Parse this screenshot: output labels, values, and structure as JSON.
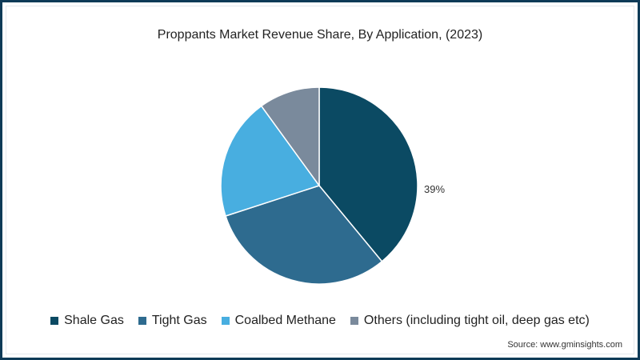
{
  "chart_data": {
    "type": "pie",
    "title": "Proppants Market Revenue Share, By Application, (2023)",
    "categories": [
      "Shale Gas",
      "Tight Gas",
      "Coalbed Methane",
      "Others (including tight oil, deep gas etc)"
    ],
    "values": [
      39,
      31,
      20,
      10
    ],
    "colors": [
      "#0b4a63",
      "#2e6b8f",
      "#48aee0",
      "#7a8a9c"
    ],
    "data_labels": [
      {
        "category": "Shale Gas",
        "text": "39%"
      }
    ],
    "legend_position": "bottom",
    "start_angle": "12 o'clock, clockwise"
  },
  "title": "Proppants Market Revenue Share, By Application, (2023)",
  "legend": [
    {
      "label": "Shale Gas",
      "color": "#0b4a63"
    },
    {
      "label": "Tight Gas",
      "color": "#2e6b8f"
    },
    {
      "label": "Coalbed Methane",
      "color": "#48aee0"
    },
    {
      "label": "Others (including tight oil, deep gas etc)",
      "color": "#7a8a9c"
    }
  ],
  "shale_label": "39%",
  "source": "Source: www.gminsights.com",
  "border_color": "#0d3a57"
}
